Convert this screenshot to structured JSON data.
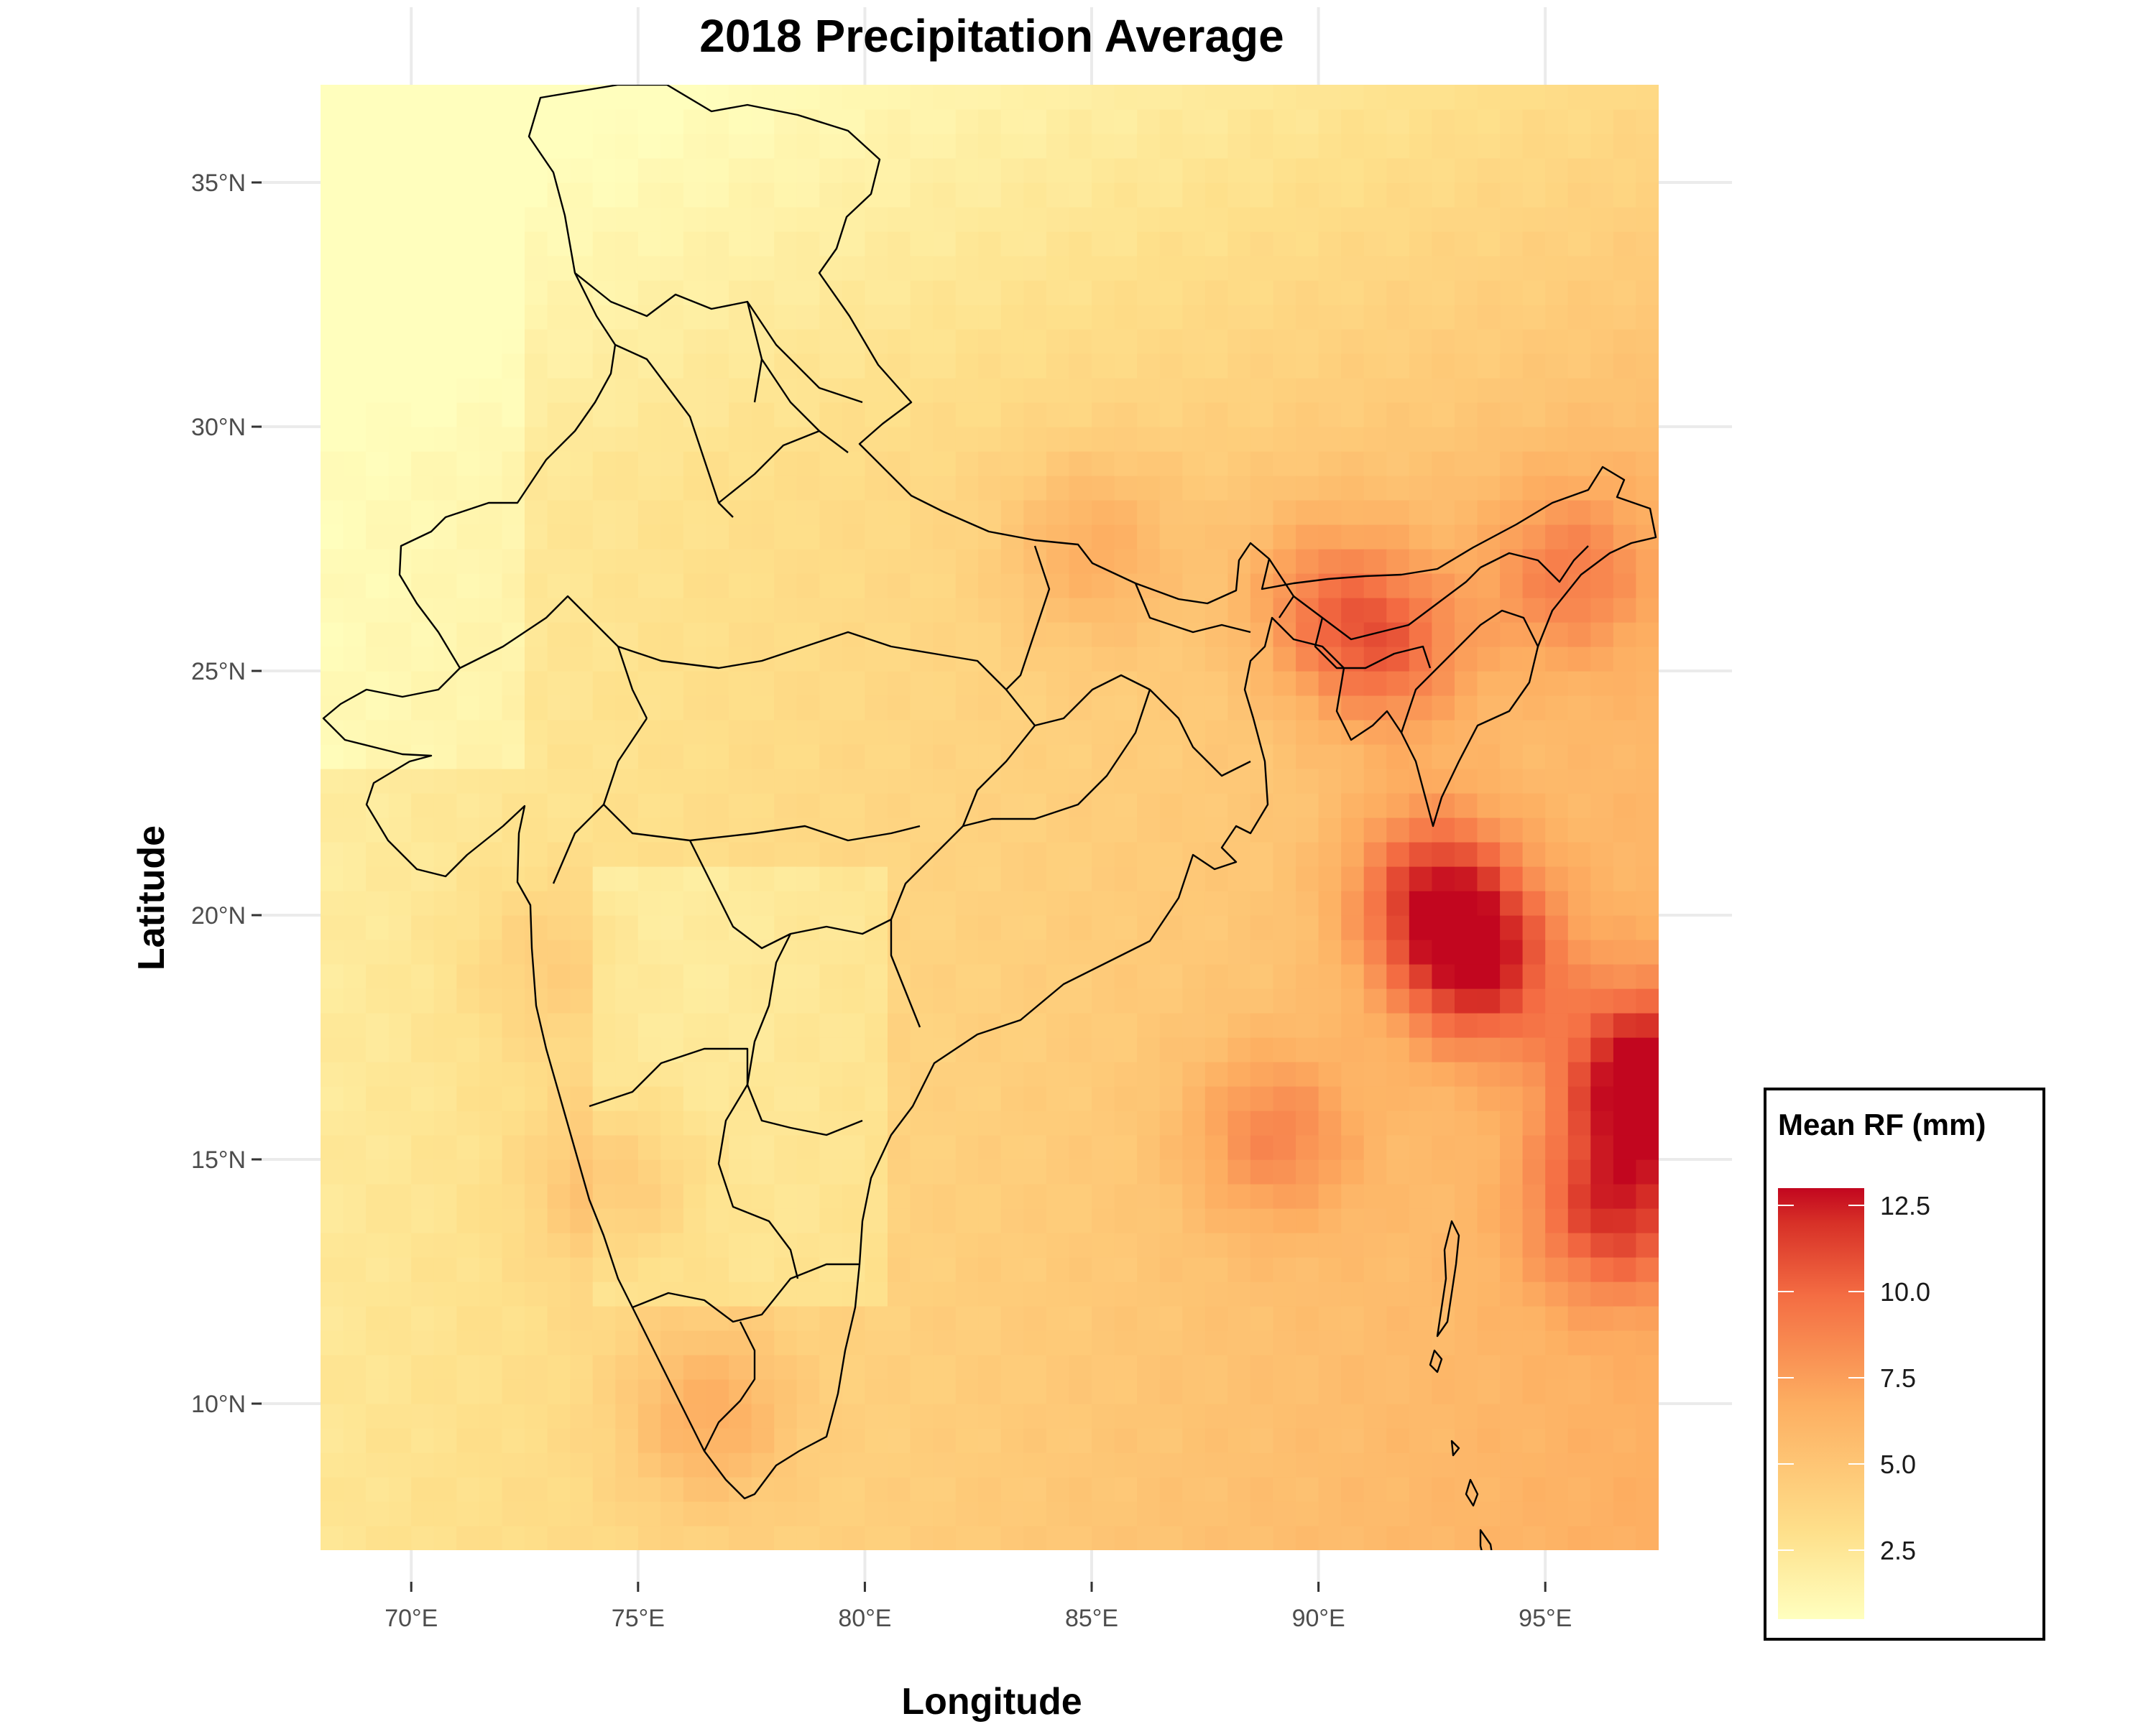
{
  "map": {
    "title": "2018  Precipitation Average",
    "x_axis_title": "Longitude",
    "y_axis_title": "Latitude",
    "x_ticks": [
      {
        "value": 70,
        "label": "70°E"
      },
      {
        "value": 75,
        "label": "75°E"
      },
      {
        "value": 80,
        "label": "80°E"
      },
      {
        "value": 85,
        "label": "85°E"
      },
      {
        "value": 90,
        "label": "90°E"
      },
      {
        "value": 95,
        "label": "95°E"
      }
    ],
    "y_ticks": [
      {
        "value": 10,
        "label": "10°N"
      },
      {
        "value": 15,
        "label": "15°N"
      },
      {
        "value": 20,
        "label": "20°N"
      },
      {
        "value": 25,
        "label": "25°N"
      },
      {
        "value": 30,
        "label": "30°N"
      },
      {
        "value": 35,
        "label": "35°N"
      }
    ],
    "lon_range": [
      68,
      97.5
    ],
    "lat_range": [
      7,
      37
    ],
    "grid": true
  },
  "legend": {
    "title": "Mean RF (mm)",
    "placement": "bottom-right",
    "range": [
      0.5,
      13
    ],
    "ticks": [
      {
        "value": 12.5,
        "label": "12.5"
      },
      {
        "value": 10.0,
        "label": "10.0"
      },
      {
        "value": 7.5,
        "label": "7.5"
      },
      {
        "value": 5.0,
        "label": "5.0"
      },
      {
        "value": 2.5,
        "label": "2.5"
      }
    ],
    "colors": [
      "#ffffbf",
      "#fee08b",
      "#fdae61",
      "#f46d43",
      "#d73027",
      "#c2061f"
    ]
  },
  "chart_data": {
    "type": "heatmap",
    "title": "2018  Precipitation Average",
    "xlabel": "Longitude",
    "ylabel": "Latitude",
    "xlim": [
      68,
      97.5
    ],
    "ylim": [
      7,
      37
    ],
    "value_range": [
      0.5,
      13
    ],
    "hotspots": [
      {
        "lon": 97.2,
        "lat": 16.7,
        "value": 12.8
      },
      {
        "lon": 93.5,
        "lat": 19.0,
        "value": 11.5
      },
      {
        "lon": 92.5,
        "lat": 20.5,
        "value": 10.5
      },
      {
        "lon": 91.5,
        "lat": 25.5,
        "value": 9.5
      },
      {
        "lon": 96.5,
        "lat": 14.0,
        "value": 10.5
      },
      {
        "lon": 89.0,
        "lat": 15.5,
        "value": 8.5
      },
      {
        "lon": 95.5,
        "lat": 27.0,
        "value": 8.5
      },
      {
        "lon": 90.0,
        "lat": 26.5,
        "value": 8.0
      },
      {
        "lon": 74.5,
        "lat": 14.5,
        "value": 7.5
      },
      {
        "lon": 76.5,
        "lat": 9.8,
        "value": 8.0
      },
      {
        "lon": 85.0,
        "lat": 27.5,
        "value": 7.5
      },
      {
        "lon": 73.0,
        "lat": 19.0,
        "value": 6.5
      }
    ]
  }
}
